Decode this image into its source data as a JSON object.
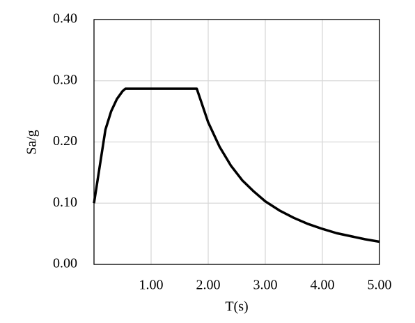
{
  "chart_data": {
    "type": "line",
    "x_label": "T(s)",
    "y_label": "Sa/g",
    "x": [
      0,
      0.1,
      0.2,
      0.3,
      0.4,
      0.5,
      0.55,
      1.8,
      2.0,
      2.2,
      2.4,
      2.6,
      2.8,
      3.0,
      3.25,
      3.5,
      3.75,
      4.0,
      4.25,
      4.5,
      4.75,
      5.0
    ],
    "values": [
      0.1,
      0.16,
      0.22,
      0.25,
      0.27,
      0.283,
      0.287,
      0.287,
      0.232,
      0.192,
      0.161,
      0.137,
      0.119,
      0.103,
      0.088,
      0.076,
      0.066,
      0.058,
      0.051,
      0.046,
      0.041,
      0.037
    ],
    "color": "#000000",
    "xlim": [
      0,
      5
    ],
    "xticks": [
      {
        "value": 1,
        "label": "1.00"
      },
      {
        "value": 2,
        "label": "2.00"
      },
      {
        "value": 3,
        "label": "3.00"
      },
      {
        "value": 4,
        "label": "4.00"
      },
      {
        "value": 5,
        "label": "5.00"
      }
    ],
    "ylim": [
      0,
      0.4
    ],
    "yticks": [
      {
        "value": 0,
        "label": "0.00"
      },
      {
        "value": 0.1,
        "label": "0.10"
      },
      {
        "value": 0.2,
        "label": "0.20"
      },
      {
        "value": 0.3,
        "label": "0.30"
      },
      {
        "value": 0.4,
        "label": "0.40"
      }
    ],
    "grid": true
  }
}
